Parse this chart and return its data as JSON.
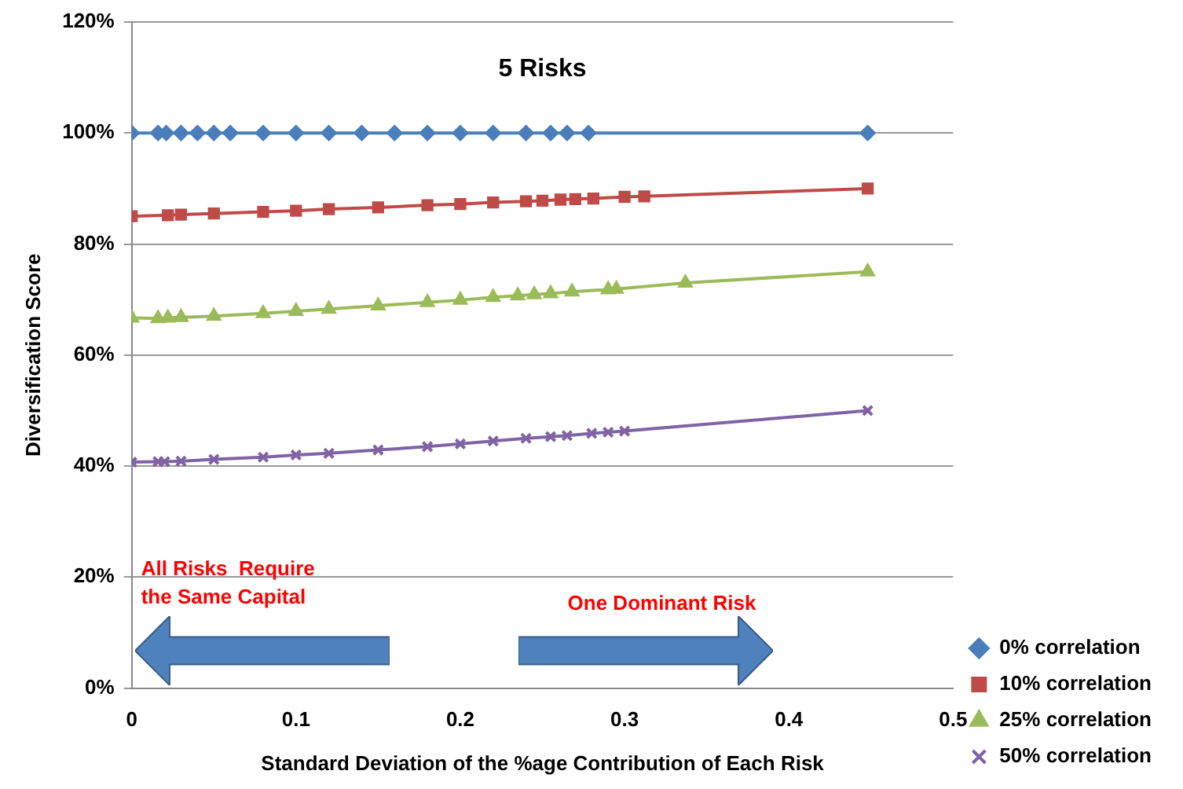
{
  "chart_data": {
    "type": "line",
    "title": "5 Risks",
    "xlabel": "Standard Deviation of the %age Contribution of Each Risk",
    "ylabel": "Diversification Score",
    "annotations": [
      "All Risks  Require the Same Capital",
      "One Dominant Risk"
    ],
    "xlim": [
      0,
      0.5
    ],
    "xticks": [
      0,
      0.1,
      0.2,
      0.3,
      0.4,
      0.5
    ],
    "ylim": [
      0,
      120
    ],
    "yticks": [
      {
        "value": 0,
        "label": "0%"
      },
      {
        "value": 20,
        "label": "20%"
      },
      {
        "value": 40,
        "label": "40%"
      },
      {
        "value": 60,
        "label": "60%"
      },
      {
        "value": 80,
        "label": "80%"
      },
      {
        "value": 100,
        "label": "100%"
      },
      {
        "value": 120,
        "label": "120%"
      }
    ],
    "grid": "y",
    "legend": "bottom right",
    "line_style": "solid",
    "series": [
      {
        "name": "0% correlation",
        "color": "#4a7ebb",
        "marker": "diamond",
        "x": [
          0,
          0.016,
          0.021,
          0.03,
          0.04,
          0.05,
          0.06,
          0.08,
          0.1,
          0.12,
          0.14,
          0.16,
          0.18,
          0.2,
          0.22,
          0.24,
          0.255,
          0.265,
          0.278,
          0.448
        ],
        "values": [
          100,
          100,
          100,
          100,
          100,
          100,
          100,
          100,
          100,
          100,
          100,
          100,
          100,
          100,
          100,
          100,
          100,
          100,
          100,
          100
        ]
      },
      {
        "name": "10% correlation",
        "color": "#be4b48",
        "marker": "square",
        "x": [
          0,
          0.022,
          0.03,
          0.05,
          0.08,
          0.1,
          0.12,
          0.15,
          0.18,
          0.2,
          0.22,
          0.24,
          0.25,
          0.261,
          0.27,
          0.281,
          0.3,
          0.312,
          0.448
        ],
        "values": [
          85,
          85.2,
          85.3,
          85.5,
          85.8,
          86,
          86.3,
          86.6,
          87,
          87.2,
          87.5,
          87.7,
          87.8,
          88,
          88.1,
          88.2,
          88.5,
          88.6,
          90
        ]
      },
      {
        "name": "25% correlation",
        "color": "#9bbb59",
        "marker": "triangle",
        "x": [
          0,
          0.016,
          0.022,
          0.03,
          0.05,
          0.08,
          0.1,
          0.12,
          0.15,
          0.18,
          0.2,
          0.22,
          0.235,
          0.245,
          0.255,
          0.268,
          0.29,
          0.295,
          0.337,
          0.448
        ],
        "values": [
          66.7,
          66.6,
          66.7,
          66.8,
          67,
          67.5,
          67.9,
          68.3,
          68.9,
          69.5,
          69.9,
          70.4,
          70.7,
          70.9,
          71.1,
          71.4,
          71.8,
          71.9,
          73,
          75
        ]
      },
      {
        "name": "50% correlation",
        "color": "#7f63a4",
        "marker": "cross",
        "x": [
          0,
          0.016,
          0.02,
          0.03,
          0.05,
          0.08,
          0.1,
          0.12,
          0.15,
          0.18,
          0.2,
          0.22,
          0.24,
          0.255,
          0.265,
          0.28,
          0.29,
          0.3,
          0.448
        ],
        "values": [
          40.7,
          40.8,
          40.8,
          40.9,
          41.2,
          41.6,
          42,
          42.3,
          42.9,
          43.5,
          44,
          44.5,
          45,
          45.3,
          45.5,
          45.9,
          46.1,
          46.3,
          50
        ]
      }
    ]
  }
}
